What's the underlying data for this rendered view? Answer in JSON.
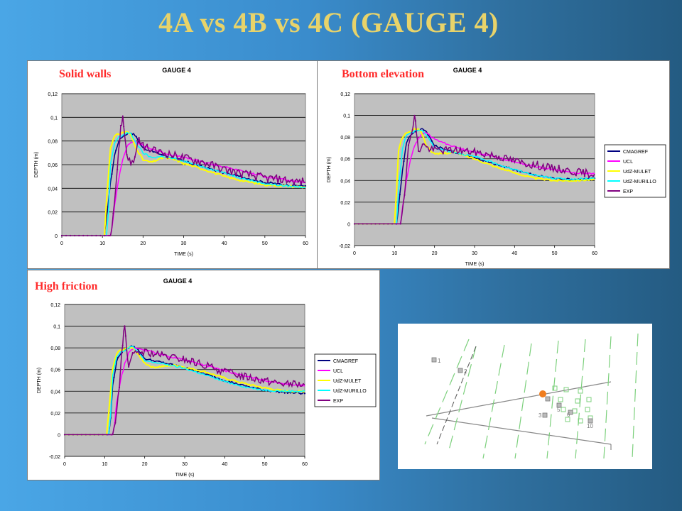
{
  "slide": {
    "title": "4A vs 4B vs 4C (GAUGE 4)"
  },
  "labels": {
    "solid": "Solid walls",
    "bottom": "Bottom elevation",
    "high": "High friction"
  },
  "chart_data": [
    {
      "type": "line",
      "title": "GAUGE 4",
      "xlabel": "TIME (s)",
      "ylabel": "DEPTH (m)",
      "xlim": [
        0,
        60
      ],
      "ylim": [
        0,
        0.12
      ],
      "xticks": [
        "0",
        "10",
        "20",
        "30",
        "40",
        "50",
        "60"
      ],
      "yticks": [
        "0",
        "0,02",
        "0,04",
        "0,06",
        "0,08",
        "0,1",
        "0,12"
      ],
      "grid": true,
      "legend": "none",
      "series": [
        {
          "name": "CMAGREF",
          "color": "#000080",
          "x": [
            0,
            10.5,
            11,
            12,
            13,
            14,
            15,
            16,
            17,
            18,
            20,
            25,
            30,
            35,
            40,
            45,
            50,
            55,
            60
          ],
          "values": [
            0,
            0,
            0.015,
            0.045,
            0.068,
            0.08,
            0.084,
            0.086,
            0.087,
            0.085,
            0.074,
            0.068,
            0.063,
            0.058,
            0.053,
            0.049,
            0.045,
            0.043,
            0.042
          ]
        },
        {
          "name": "UCL",
          "color": "#ff00ff",
          "x": [
            0,
            12,
            12.5,
            13,
            14,
            15,
            16,
            17,
            18,
            20,
            25,
            30,
            35,
            40,
            45,
            50,
            55,
            60
          ],
          "values": [
            0,
            0,
            0.01,
            0.025,
            0.048,
            0.065,
            0.075,
            0.079,
            0.08,
            0.076,
            0.07,
            0.066,
            0.062,
            0.058,
            0.054,
            0.05,
            0.047,
            0.045
          ]
        },
        {
          "name": "UdZ-MULET",
          "color": "#ffff00",
          "x": [
            0,
            10.5,
            11,
            12,
            13,
            14,
            15,
            16,
            17,
            18,
            20,
            22,
            25,
            28,
            30,
            35,
            40,
            45,
            50,
            55,
            60
          ],
          "values": [
            0,
            0,
            0.03,
            0.075,
            0.084,
            0.086,
            0.087,
            0.088,
            0.085,
            0.076,
            0.064,
            0.062,
            0.066,
            0.064,
            0.061,
            0.056,
            0.05,
            0.046,
            0.043,
            0.042,
            0.041
          ]
        },
        {
          "name": "UdZ-MURILLO",
          "color": "#00ffff",
          "x": [
            0,
            11,
            11.5,
            12,
            13,
            14,
            15,
            16,
            17,
            18,
            20,
            22,
            25,
            30,
            35,
            40,
            45,
            50,
            55,
            60
          ],
          "values": [
            0,
            0,
            0.02,
            0.06,
            0.078,
            0.083,
            0.085,
            0.087,
            0.086,
            0.08,
            0.07,
            0.066,
            0.067,
            0.063,
            0.058,
            0.053,
            0.048,
            0.044,
            0.042,
            0.041
          ]
        },
        {
          "name": "EXP",
          "color": "#800080",
          "x": [
            0,
            12,
            13,
            14,
            14.5,
            15,
            15.5,
            16,
            17,
            18,
            19,
            20,
            22,
            25,
            30,
            35,
            40,
            45,
            50,
            55,
            60
          ],
          "values": [
            0,
            0,
            0.03,
            0.07,
            0.092,
            0.1,
            0.085,
            0.07,
            0.06,
            0.066,
            0.08,
            0.076,
            0.072,
            0.07,
            0.066,
            0.062,
            0.056,
            0.052,
            0.049,
            0.047,
            0.045
          ]
        }
      ]
    },
    {
      "type": "line",
      "title": "GAUGE 4",
      "xlabel": "TIME (s)",
      "ylabel": "DEPTH (m)",
      "xlim": [
        0,
        60
      ],
      "ylim": [
        -0.02,
        0.12
      ],
      "xticks": [
        "0",
        "10",
        "20",
        "30",
        "40",
        "50",
        "60"
      ],
      "yticks": [
        "-0,02",
        "0",
        "0,02",
        "0,04",
        "0,06",
        "0,08",
        "0,1",
        "0,12"
      ],
      "grid": true,
      "legend": "right",
      "series": [
        {
          "name": "CMAGREF",
          "color": "#000080",
          "x": [
            0,
            10.5,
            11,
            12,
            13,
            14,
            15,
            16,
            17,
            18,
            20,
            25,
            30,
            35,
            40,
            45,
            50,
            55,
            60
          ],
          "values": [
            0,
            0,
            0.015,
            0.05,
            0.075,
            0.082,
            0.085,
            0.086,
            0.088,
            0.085,
            0.072,
            0.066,
            0.061,
            0.055,
            0.05,
            0.045,
            0.042,
            0.041,
            0.042
          ]
        },
        {
          "name": "UCL",
          "color": "#ff00ff",
          "x": [
            0,
            11.5,
            12,
            13,
            14,
            15,
            16,
            17,
            18,
            20,
            25,
            30,
            35,
            40,
            45,
            50,
            55,
            60
          ],
          "values": [
            0,
            0,
            0.015,
            0.04,
            0.06,
            0.072,
            0.079,
            0.083,
            0.084,
            0.078,
            0.071,
            0.066,
            0.062,
            0.057,
            0.053,
            0.05,
            0.047,
            0.046
          ]
        },
        {
          "name": "UdZ-MULET",
          "color": "#ffff00",
          "x": [
            0,
            10,
            10.5,
            11,
            12,
            13,
            14,
            15,
            16,
            17,
            18,
            20,
            22,
            25,
            30,
            35,
            40,
            45,
            50,
            55,
            60
          ],
          "values": [
            0,
            0,
            0.03,
            0.068,
            0.08,
            0.084,
            0.085,
            0.087,
            0.088,
            0.082,
            0.072,
            0.064,
            0.065,
            0.066,
            0.06,
            0.053,
            0.047,
            0.042,
            0.04,
            0.04,
            0.041
          ]
        },
        {
          "name": "UdZ-MURILLO",
          "color": "#00ffff",
          "x": [
            0,
            10.5,
            11,
            12,
            13,
            14,
            15,
            16,
            17,
            18,
            20,
            25,
            30,
            35,
            40,
            45,
            50,
            55,
            60
          ],
          "values": [
            0,
            0,
            0.03,
            0.07,
            0.082,
            0.084,
            0.085,
            0.087,
            0.086,
            0.082,
            0.07,
            0.066,
            0.062,
            0.056,
            0.05,
            0.045,
            0.042,
            0.041,
            0.042
          ]
        },
        {
          "name": "EXP",
          "color": "#800080",
          "x": [
            0,
            11.5,
            12.5,
            13.5,
            14.5,
            15,
            15.5,
            16,
            17,
            18,
            20,
            25,
            30,
            35,
            40,
            45,
            50,
            55,
            60
          ],
          "values": [
            0,
            0,
            0.03,
            0.07,
            0.09,
            0.1,
            0.085,
            0.065,
            0.075,
            0.07,
            0.068,
            0.068,
            0.066,
            0.063,
            0.058,
            0.054,
            0.051,
            0.048,
            0.046
          ]
        }
      ]
    },
    {
      "type": "line",
      "title": "GAUGE 4",
      "xlabel": "TIME (s)",
      "ylabel": "DEPTH (m)",
      "xlim": [
        0,
        60
      ],
      "ylim": [
        -0.02,
        0.12
      ],
      "xticks": [
        "0",
        "10",
        "20",
        "30",
        "40",
        "50",
        "60"
      ],
      "yticks": [
        "-0,02",
        "0",
        "0,02",
        "0,04",
        "0,06",
        "0,08",
        "0,1",
        "0,12"
      ],
      "grid": true,
      "legend": "right",
      "series": [
        {
          "name": "CMAGREF",
          "color": "#000080",
          "x": [
            0,
            11,
            11.5,
            12,
            13,
            14,
            15,
            16,
            17,
            18,
            20,
            25,
            30,
            35,
            40,
            45,
            50,
            55,
            60
          ],
          "values": [
            0,
            0,
            0.015,
            0.045,
            0.068,
            0.075,
            0.078,
            0.08,
            0.082,
            0.08,
            0.07,
            0.066,
            0.062,
            0.056,
            0.05,
            0.045,
            0.041,
            0.039,
            0.038
          ]
        },
        {
          "name": "UCL",
          "color": "#ff00ff",
          "x": [
            0,
            12,
            12.5,
            13,
            14,
            15,
            16,
            17,
            18,
            20,
            25,
            30,
            35,
            40,
            45,
            50,
            55,
            60
          ],
          "values": [
            0,
            0,
            0.01,
            0.03,
            0.05,
            0.065,
            0.075,
            0.079,
            0.08,
            0.078,
            0.073,
            0.069,
            0.064,
            0.059,
            0.054,
            0.05,
            0.047,
            0.045
          ]
        },
        {
          "name": "UdZ-MULET",
          "color": "#ffff00",
          "x": [
            0,
            10.5,
            11,
            12,
            13,
            14,
            15,
            16,
            17,
            18,
            20,
            22,
            25,
            28,
            30,
            35,
            40,
            45,
            50,
            55,
            60
          ],
          "values": [
            0,
            0,
            0.02,
            0.06,
            0.075,
            0.078,
            0.079,
            0.08,
            0.08,
            0.076,
            0.066,
            0.062,
            0.063,
            0.064,
            0.062,
            0.058,
            0.052,
            0.047,
            0.043,
            0.04,
            0.04
          ]
        },
        {
          "name": "UdZ-MURILLO",
          "color": "#00ffff",
          "x": [
            0,
            11,
            11.5,
            12,
            13,
            14,
            15,
            16,
            17,
            18,
            20,
            25,
            30,
            35,
            40,
            45,
            50,
            55,
            60
          ],
          "values": [
            0,
            0,
            0.02,
            0.055,
            0.072,
            0.076,
            0.078,
            0.08,
            0.081,
            0.078,
            0.068,
            0.065,
            0.061,
            0.055,
            0.049,
            0.044,
            0.041,
            0.04,
            0.04
          ]
        },
        {
          "name": "EXP",
          "color": "#800080",
          "x": [
            0,
            12,
            13,
            14,
            14.5,
            15,
            15.5,
            16,
            17,
            18,
            20,
            25,
            30,
            35,
            40,
            45,
            50,
            55,
            60
          ],
          "values": [
            0,
            0,
            0.02,
            0.06,
            0.085,
            0.1,
            0.08,
            0.065,
            0.072,
            0.075,
            0.076,
            0.072,
            0.069,
            0.064,
            0.058,
            0.054,
            0.05,
            0.047,
            0.046
          ]
        }
      ]
    }
  ],
  "map": {
    "gauges": [
      "1",
      "2",
      "3",
      "5",
      "6",
      "10"
    ],
    "marker_color": "#f07d1e"
  }
}
